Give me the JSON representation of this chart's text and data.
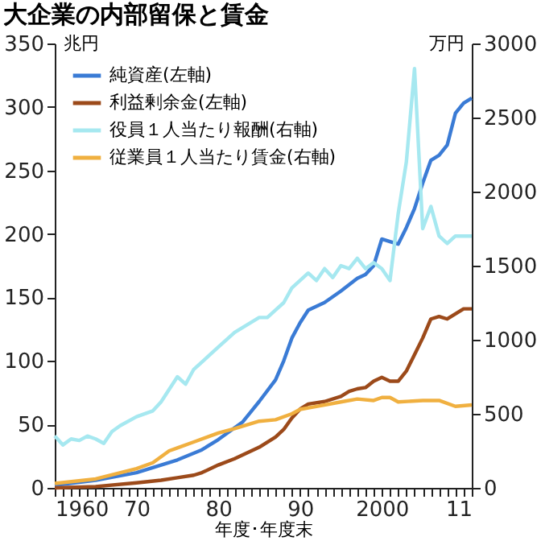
{
  "chart_data": {
    "type": "line",
    "title": "大企業の内部留保と賃金",
    "xlabel": "年度･年度末",
    "ylabel": "兆円",
    "y2label": "万円",
    "xlim": [
      1960,
      2011
    ],
    "xticks": [
      1960,
      {
        "value": 1961,
        "label": null
      },
      {
        "value": 1962,
        "label": null
      },
      {
        "value": 1963,
        "label": null
      },
      {
        "value": 1964,
        "label": null
      },
      {
        "value": 1965,
        "label": null
      },
      {
        "value": 1966,
        "label": null
      },
      {
        "value": 1967,
        "label": null
      },
      {
        "value": 1968,
        "label": null
      },
      {
        "value": 1969,
        "label": null
      },
      {
        "value": 1970,
        "label": "70"
      },
      {
        "value": 1971,
        "label": null
      },
      {
        "value": 1972,
        "label": null
      },
      {
        "value": 1973,
        "label": null
      },
      {
        "value": 1974,
        "label": null
      },
      {
        "value": 1975,
        "label": null
      },
      {
        "value": 1976,
        "label": null
      },
      {
        "value": 1977,
        "label": null
      },
      {
        "value": 1978,
        "label": null
      },
      {
        "value": 1979,
        "label": null
      },
      {
        "value": 1980,
        "label": "80"
      },
      {
        "value": 1981,
        "label": null
      },
      {
        "value": 1982,
        "label": null
      },
      {
        "value": 1983,
        "label": null
      },
      {
        "value": 1984,
        "label": null
      },
      {
        "value": 1985,
        "label": null
      },
      {
        "value": 1986,
        "label": null
      },
      {
        "value": 1987,
        "label": null
      },
      {
        "value": 1988,
        "label": null
      },
      {
        "value": 1989,
        "label": null
      },
      {
        "value": 1990,
        "label": "90"
      },
      {
        "value": 1991,
        "label": null
      },
      {
        "value": 1992,
        "label": null
      },
      {
        "value": 1993,
        "label": null
      },
      {
        "value": 1994,
        "label": null
      },
      {
        "value": 1995,
        "label": null
      },
      {
        "value": 1996,
        "label": null
      },
      {
        "value": 1997,
        "label": null
      },
      {
        "value": 1998,
        "label": null
      },
      {
        "value": 1999,
        "label": null
      },
      2000,
      {
        "value": 2001,
        "label": null
      },
      {
        "value": 2002,
        "label": null
      },
      {
        "value": 2003,
        "label": null
      },
      {
        "value": 2004,
        "label": null
      },
      {
        "value": 2005,
        "label": null
      },
      {
        "value": 2006,
        "label": null
      },
      {
        "value": 2007,
        "label": null
      },
      {
        "value": 2008,
        "label": null
      },
      {
        "value": 2009,
        "label": null
      },
      {
        "value": 2010,
        "label": null
      },
      {
        "value": 2011,
        "label": "11"
      }
    ],
    "ylim": [
      0,
      350
    ],
    "yticks": [
      0,
      50,
      100,
      150,
      200,
      250,
      300,
      350
    ],
    "y2lim": [
      0,
      3000
    ],
    "y2ticks": [
      0,
      500,
      1000,
      1500,
      2000,
      2500,
      3000
    ],
    "grid": false,
    "legend": "top left",
    "marker": "none",
    "line_style": "solid",
    "series": [
      {
        "name": "純資産(左軸)",
        "color": "#3a7bd5",
        "x": [
          1960,
          1965,
          1970,
          1975,
          1978,
          1980,
          1983,
          1985,
          1987,
          1988,
          1989,
          1990,
          1991,
          1993,
          1995,
          1997,
          1998,
          1999,
          2000,
          2001,
          2002,
          2003,
          2004,
          2005,
          2006,
          2007,
          2008,
          2009,
          2010,
          2011
        ],
        "values": [
          2,
          6,
          12,
          22,
          30,
          38,
          52,
          68,
          85,
          100,
          118,
          130,
          140,
          146,
          155,
          165,
          168,
          175,
          196,
          194,
          192,
          205,
          220,
          240,
          258,
          262,
          270,
          295,
          303,
          307
        ]
      },
      {
        "name": "利益剰余金(左軸)",
        "color": "#9c4a1a",
        "x": [
          1960,
          1965,
          1970,
          1973,
          1975,
          1977,
          1978,
          1980,
          1982,
          1985,
          1987,
          1988,
          1989,
          1990,
          1991,
          1993,
          1995,
          1996,
          1997,
          1998,
          1999,
          2000,
          2001,
          2002,
          2003,
          2004,
          2005,
          2006,
          2007,
          2008,
          2009,
          2010,
          2011
        ],
        "values": [
          0,
          1,
          4,
          6,
          8,
          10,
          12,
          18,
          23,
          32,
          40,
          46,
          55,
          62,
          66,
          68,
          72,
          76,
          78,
          79,
          84,
          87,
          84,
          84,
          92,
          105,
          118,
          133,
          135,
          133,
          137,
          141,
          141
        ]
      },
      {
        "name": "役員１人当たり報酬(右軸)",
        "color": "#a6e8f0",
        "axis": "y2",
        "x": [
          1960,
          1961,
          1962,
          1963,
          1964,
          1965,
          1966,
          1967,
          1968,
          1970,
          1972,
          1973,
          1975,
          1976,
          1977,
          1980,
          1982,
          1985,
          1986,
          1987,
          1988,
          1989,
          1990,
          1991,
          1992,
          1993,
          1994,
          1995,
          1996,
          1997,
          1998,
          1999,
          2000,
          2001,
          2002,
          2003,
          2004,
          2005,
          2006,
          2007,
          2008,
          2009,
          2010,
          2011
        ],
        "values": [
          350,
          290,
          330,
          320,
          350,
          330,
          300,
          380,
          420,
          480,
          520,
          580,
          750,
          700,
          800,
          950,
          1050,
          1150,
          1150,
          1200,
          1250,
          1350,
          1400,
          1450,
          1400,
          1480,
          1420,
          1500,
          1480,
          1550,
          1480,
          1520,
          1480,
          1400,
          1850,
          2200,
          2830,
          1750,
          1900,
          1700,
          1650,
          1700,
          1700,
          1700
        ]
      },
      {
        "name": "従業員１人当たり賃金(右軸)",
        "color": "#f0b040",
        "axis": "y2",
        "x": [
          1960,
          1965,
          1970,
          1972,
          1974,
          1975,
          1977,
          1980,
          1982,
          1985,
          1987,
          1989,
          1990,
          1992,
          1995,
          1997,
          1999,
          2000,
          2001,
          2002,
          2005,
          2007,
          2009,
          2011
        ],
        "values": [
          30,
          60,
          130,
          170,
          250,
          270,
          310,
          370,
          400,
          450,
          460,
          500,
          530,
          550,
          580,
          600,
          590,
          610,
          610,
          580,
          590,
          590,
          550,
          560
        ]
      }
    ]
  }
}
